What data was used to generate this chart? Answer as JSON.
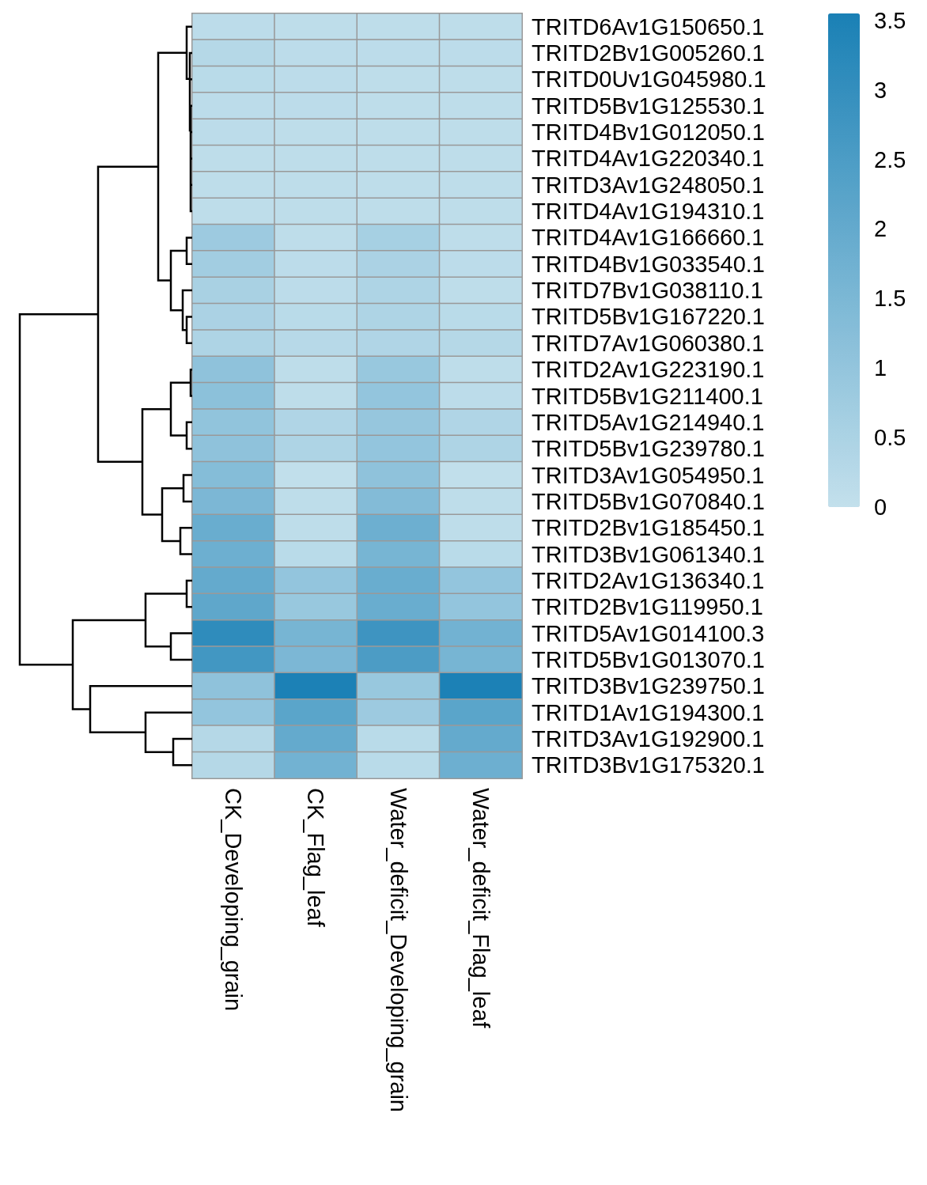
{
  "chart_data": {
    "type": "heatmap",
    "categories": [
      "CK_Developing_grain",
      "CK_Flag_leaf",
      "Water_deficit_Developing_grain",
      "Water_deficit_Flag_leaf"
    ],
    "y_categories": [
      "TRITD6Av1G150650.1",
      "TRITD2Bv1G005260.1",
      "TRITD0Uv1G045980.1",
      "TRITD5Bv1G125530.1",
      "TRITD4Bv1G012050.1",
      "TRITD4Av1G220340.1",
      "TRITD3Av1G248050.1",
      "TRITD4Av1G194310.1",
      "TRITD4Av1G166660.1",
      "TRITD4Bv1G033540.1",
      "TRITD7Bv1G038110.1",
      "TRITD5Bv1G167220.1",
      "TRITD7Av1G060380.1",
      "TRITD2Av1G223190.1",
      "TRITD5Bv1G211400.1",
      "TRITD5Av1G214940.1",
      "TRITD5Bv1G239780.1",
      "TRITD3Av1G054950.1",
      "TRITD5Bv1G070840.1",
      "TRITD2Bv1G185450.1",
      "TRITD3Bv1G061340.1",
      "TRITD2Av1G136340.1",
      "TRITD2Bv1G119950.1",
      "TRITD5Av1G014100.3",
      "TRITD5Bv1G013070.1",
      "TRITD3Bv1G239750.1",
      "TRITD1Av1G194300.1",
      "TRITD3Av1G192900.1",
      "TRITD3Bv1G175320.1"
    ],
    "cells": [
      [
        0.15,
        0.1,
        0.1,
        0.1
      ],
      [
        0.3,
        0.15,
        0.15,
        0.15
      ],
      [
        0.2,
        0.15,
        0.1,
        0.1
      ],
      [
        0.15,
        0.15,
        0.1,
        0.1
      ],
      [
        0.15,
        0.1,
        0.1,
        0.1
      ],
      [
        0.1,
        0.1,
        0.1,
        0.1
      ],
      [
        0.1,
        0.1,
        0.1,
        0.1
      ],
      [
        0.1,
        0.1,
        0.1,
        0.1
      ],
      [
        0.8,
        0.1,
        0.6,
        0.1
      ],
      [
        0.7,
        0.15,
        0.5,
        0.15
      ],
      [
        0.55,
        0.15,
        0.45,
        0.1
      ],
      [
        0.5,
        0.2,
        0.45,
        0.2
      ],
      [
        0.45,
        0.25,
        0.4,
        0.3
      ],
      [
        1.1,
        0.1,
        0.9,
        0.1
      ],
      [
        1.15,
        0.1,
        1.0,
        0.15
      ],
      [
        1.05,
        0.4,
        0.95,
        0.4
      ],
      [
        1.1,
        0.45,
        1.0,
        0.45
      ],
      [
        1.3,
        0.05,
        1.1,
        0.05
      ],
      [
        1.5,
        0.1,
        1.35,
        0.1
      ],
      [
        1.9,
        0.1,
        1.8,
        0.1
      ],
      [
        1.8,
        0.2,
        1.6,
        0.2
      ],
      [
        2.0,
        1.0,
        1.9,
        1.0
      ],
      [
        2.1,
        0.9,
        1.9,
        1.0
      ],
      [
        3.1,
        1.6,
        2.8,
        1.7
      ],
      [
        2.7,
        1.5,
        2.5,
        1.6
      ],
      [
        1.1,
        3.5,
        0.9,
        3.5
      ],
      [
        1.0,
        2.2,
        0.8,
        2.2
      ],
      [
        0.3,
        2.0,
        0.2,
        2.0
      ],
      [
        0.3,
        1.7,
        0.2,
        1.8
      ]
    ],
    "clim": [
      0,
      3.55
    ],
    "cticks": [
      0,
      0.5,
      1,
      1.5,
      2,
      2.5,
      3,
      3.5
    ]
  }
}
